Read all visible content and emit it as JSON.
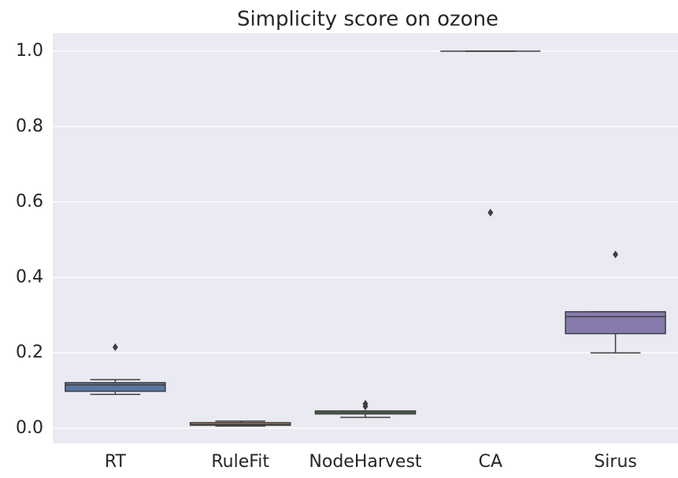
{
  "chart_data": {
    "type": "box",
    "title": "Simplicity score on ozone",
    "categories": [
      "RT",
      "RuleFit",
      "NodeHarvest",
      "CA",
      "Sirus"
    ],
    "colors": [
      "#5875a4",
      "#cc8963",
      "#5f9e6e",
      "#b55d60",
      "#857aab"
    ],
    "boxes": [
      {
        "whislo": 0.09,
        "q1": 0.098,
        "med": 0.115,
        "q3": 0.121,
        "whishi": 0.129,
        "fliers": [
          0.215
        ]
      },
      {
        "whislo": 0.006,
        "q1": 0.008,
        "med": 0.01,
        "q3": 0.015,
        "whishi": 0.019,
        "fliers": []
      },
      {
        "whislo": 0.029,
        "q1": 0.038,
        "med": 0.042,
        "q3": 0.046,
        "whishi": 0.046,
        "fliers": [
          0.065,
          0.058
        ]
      },
      {
        "whislo": 1.0,
        "q1": 1.0,
        "med": 1.0,
        "q3": 1.0,
        "whishi": 1.0,
        "fliers": [
          0.572
        ]
      },
      {
        "whislo": 0.2,
        "q1": 0.251,
        "med": 0.296,
        "q3": 0.309,
        "whishi": 0.309,
        "fliers": [
          0.461
        ]
      }
    ],
    "ylim": [
      -0.04,
      1.048
    ],
    "yticks": [
      {
        "value": 0,
        "label": "0.0"
      },
      0.2,
      0.4,
      0.6,
      0.8,
      {
        "value": 1,
        "label": "1.0"
      }
    ],
    "grid": true
  }
}
